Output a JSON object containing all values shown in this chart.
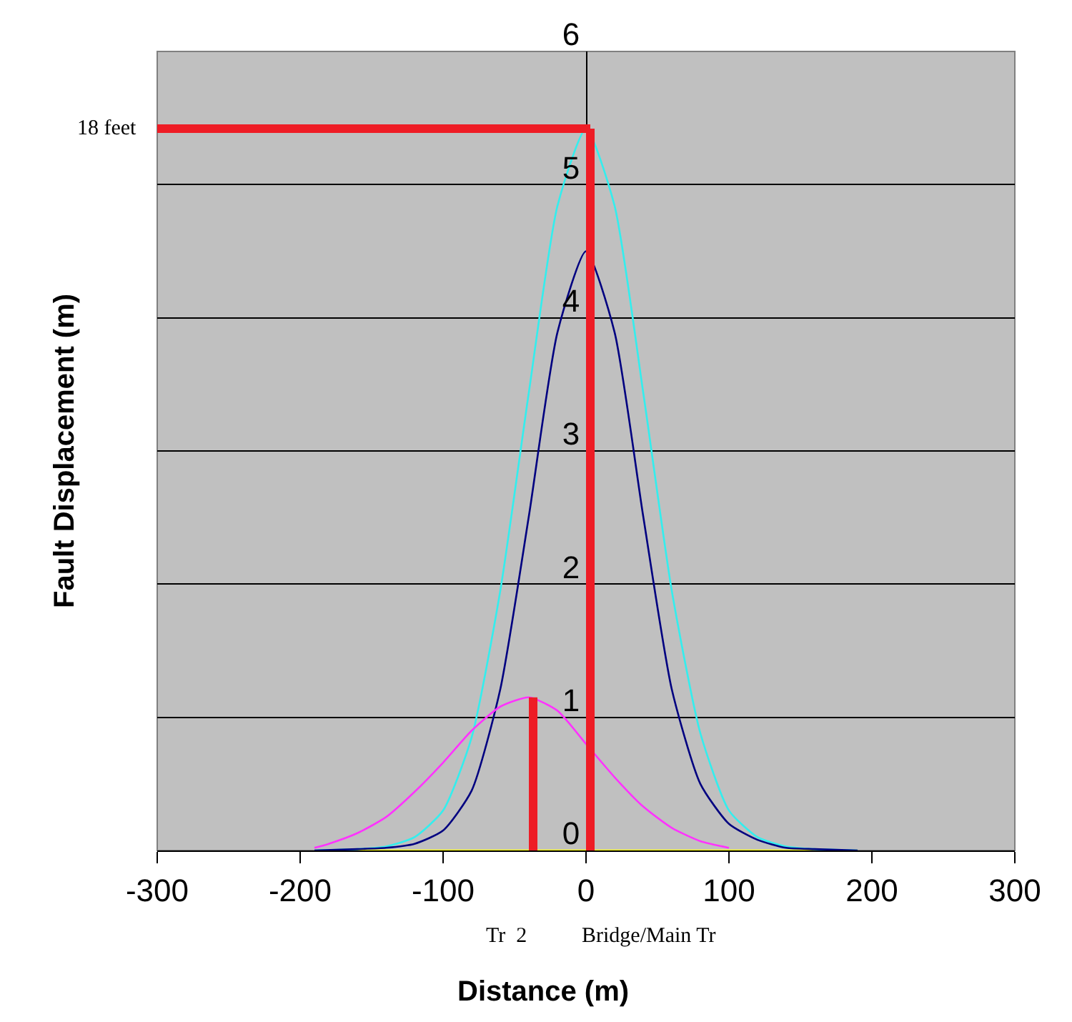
{
  "chart_data": {
    "type": "line",
    "xlabel": "Distance (m)",
    "ylabel": "Fault Displacement (m)",
    "xlim": [
      -300,
      300
    ],
    "xticks": [
      -300,
      -200,
      -100,
      0,
      100,
      200,
      300
    ],
    "ylim": [
      0,
      6
    ],
    "yticks": [
      0,
      1,
      2,
      3,
      4,
      5,
      6
    ],
    "grid": "y",
    "series": [
      {
        "color": "#ffff00",
        "x": [
          -190,
          -100,
          0,
          100,
          190
        ],
        "values": [
          0,
          0,
          0,
          0,
          0
        ]
      },
      {
        "color": "#33eeee",
        "x": [
          -190,
          -160,
          -140,
          -120,
          -100,
          -80,
          -60,
          -40,
          -20,
          0,
          20,
          40,
          60,
          80,
          100,
          120,
          140,
          160,
          190
        ],
        "values": [
          0,
          0.01,
          0.03,
          0.1,
          0.3,
          0.85,
          1.95,
          3.44,
          4.84,
          5.42,
          4.84,
          3.44,
          1.95,
          0.88,
          0.3,
          0.1,
          0.03,
          0.01,
          0
        ]
      },
      {
        "color": "#000080",
        "x": [
          -190,
          -160,
          -140,
          -120,
          -100,
          -80,
          -60,
          -40,
          -20,
          0,
          20,
          40,
          60,
          80,
          100,
          120,
          140,
          160,
          190
        ],
        "values": [
          0,
          0.01,
          0.02,
          0.05,
          0.15,
          0.45,
          1.21,
          2.51,
          3.89,
          4.5,
          3.89,
          2.51,
          1.21,
          0.5,
          0.2,
          0.08,
          0.02,
          0.01,
          0
        ]
      },
      {
        "color": "#ff33ff",
        "x": [
          -190,
          -180,
          -160,
          -140,
          -120,
          -100,
          -80,
          -60,
          -40,
          -20,
          0,
          20,
          40,
          60,
          80,
          100
        ],
        "values": [
          0.02,
          0.05,
          0.13,
          0.25,
          0.44,
          0.66,
          0.9,
          1.08,
          1.15,
          1.05,
          0.8,
          0.55,
          0.33,
          0.17,
          0.07,
          0.02
        ]
      }
    ],
    "ref_lines": [
      {
        "axis": "y",
        "value": 5.42,
        "label": "18 feet",
        "color": "#ee1c25"
      },
      {
        "axis": "x",
        "value": 3,
        "label": "Bridge/Main Tr",
        "color": "#ee1c25"
      },
      {
        "axis": "x",
        "value": -37,
        "label": "Tr  2",
        "color": "#ee1c25"
      }
    ]
  }
}
